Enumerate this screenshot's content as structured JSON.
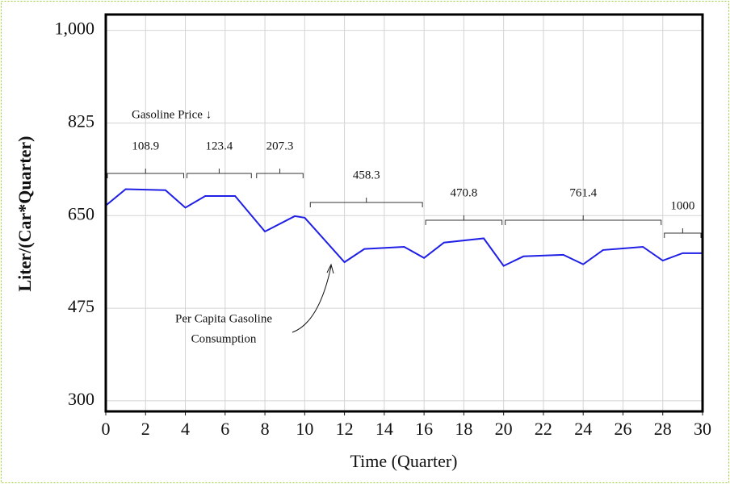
{
  "chart_data": {
    "type": "line",
    "x_label": "Time (Quarter)",
    "y_label": "Liter/(Car*Quarter)",
    "xlim": [
      0,
      30
    ],
    "ylim": [
      280,
      1030
    ],
    "xticks": [
      0,
      2,
      4,
      6,
      8,
      10,
      12,
      14,
      16,
      18,
      20,
      22,
      24,
      26,
      28,
      30
    ],
    "yticks": [
      {
        "value": 1000,
        "label": "1,000"
      },
      825,
      650,
      475,
      300
    ],
    "grid": true,
    "series": [
      {
        "name": "Per Capita Gasoline Consumption",
        "color": "#1f1fe6",
        "x": [
          0,
          1,
          3,
          4,
          5,
          6.5,
          8,
          9.5,
          10,
          12,
          13,
          15,
          16,
          17,
          19,
          20,
          21,
          23,
          24,
          25,
          27,
          28,
          29,
          30
        ],
        "values": [
          669,
          700,
          698,
          665,
          687,
          687,
          620,
          649,
          646,
          562,
          587,
          591,
          570,
          599,
          607,
          555,
          573,
          576,
          558,
          585,
          591,
          565,
          579,
          579
        ]
      }
    ],
    "price_title": "Gasoline Price ↓",
    "price_periods": [
      {
        "label": "108.9",
        "start": 0,
        "end": 4
      },
      {
        "label": "123.4",
        "start": 4,
        "end": 7.4
      },
      {
        "label": "207.3",
        "start": 7.5,
        "end": 10
      },
      {
        "label": "458.3",
        "start": 10.2,
        "end": 16
      },
      {
        "label": "470.8",
        "start": 16,
        "end": 20
      },
      {
        "label": "761.4",
        "start": 20,
        "end": 28
      },
      {
        "label": "1000",
        "start": 28,
        "end": 30
      }
    ],
    "series_annotation": [
      "Per Capita Gasoline",
      "Consumption"
    ]
  }
}
